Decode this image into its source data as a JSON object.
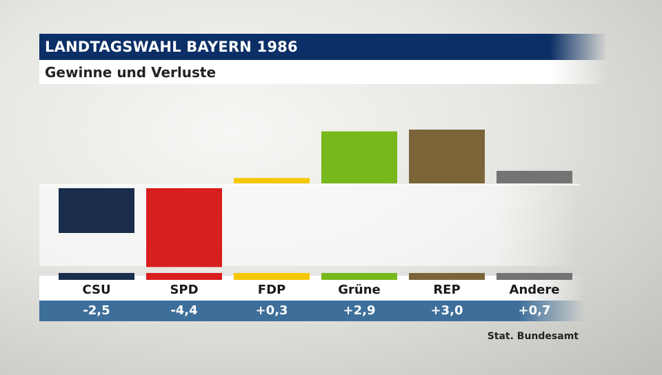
{
  "header": {
    "title": "LANDTAGSWAHL BAYERN 1986",
    "subtitle": "Gewinne und Verluste"
  },
  "source": "Stat. Bundesamt",
  "colors": {
    "title_bar": "#0b2f66",
    "value_band": "#3e6f9a"
  },
  "chart_data": {
    "type": "bar",
    "categories": [
      "CSU",
      "SPD",
      "FDP",
      "Grüne",
      "REP",
      "Andere"
    ],
    "values": [
      -2.5,
      -4.4,
      0.3,
      2.9,
      3.0,
      0.7
    ],
    "value_labels": [
      "-2,5",
      "-4,4",
      "+0,3",
      "+2,9",
      "+3,0",
      "+0,7"
    ],
    "colors": [
      "#1b2d4d",
      "#d91e1e",
      "#f5c800",
      "#77b81a",
      "#7a6438",
      "#737373"
    ],
    "title": "LANDTAGSWAHL BAYERN 1986",
    "subtitle": "Gewinne und Verluste",
    "xlabel": "",
    "ylabel": "",
    "grid": false,
    "legend": "none"
  }
}
